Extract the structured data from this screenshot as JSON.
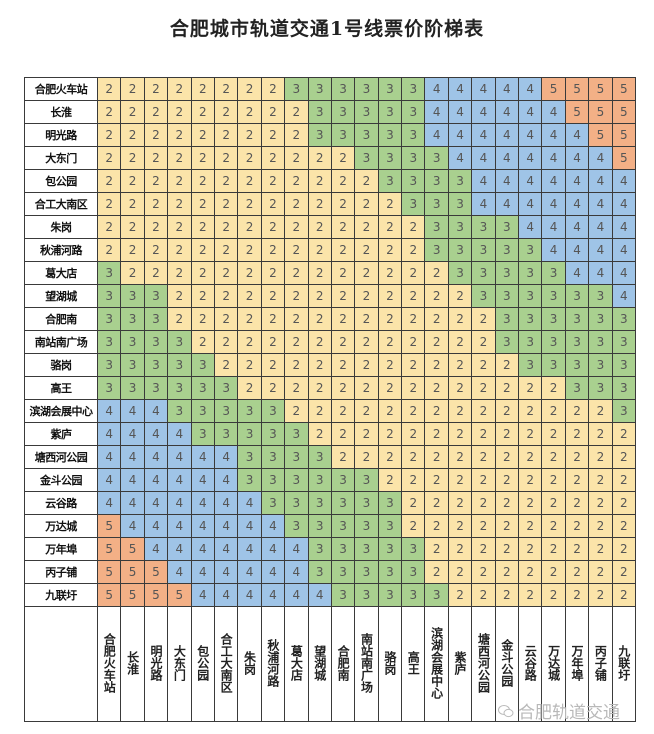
{
  "title": "合肥城市轨道交通1号线票价阶梯表",
  "watermark": "合肥轨道交通",
  "stations": [
    "合肥火车站",
    "长淮",
    "明光路",
    "大东门",
    "包公园",
    "合工大南区",
    "朱岗",
    "秋浦河路",
    "葛大店",
    "望湖城",
    "合肥南",
    "南站南广场",
    "骆岗",
    "高王",
    "滨湖会展中心",
    "紫庐",
    "塘西河公园",
    "金斗公园",
    "云谷路",
    "万达城",
    "万年埠",
    "丙子铺",
    "九联圩"
  ],
  "fare_colors": {
    "2": "#fbe4a9",
    "3": "#a9d08f",
    "4": "#9fc4e7",
    "5": "#f3b086"
  },
  "fare_upper_triangle": [
    [
      [
        0,
        7,
        2
      ],
      [
        8,
        13,
        3
      ],
      [
        14,
        18,
        4
      ],
      [
        19,
        22,
        5
      ]
    ],
    [
      [
        1,
        8,
        2
      ],
      [
        9,
        13,
        3
      ],
      [
        14,
        19,
        4
      ],
      [
        20,
        22,
        5
      ]
    ],
    [
      [
        2,
        8,
        2
      ],
      [
        9,
        13,
        3
      ],
      [
        14,
        20,
        4
      ],
      [
        21,
        22,
        5
      ]
    ],
    [
      [
        3,
        10,
        2
      ],
      [
        11,
        14,
        3
      ],
      [
        15,
        21,
        4
      ],
      [
        22,
        22,
        5
      ]
    ],
    [
      [
        4,
        11,
        2
      ],
      [
        12,
        15,
        3
      ],
      [
        16,
        22,
        4
      ]
    ],
    [
      [
        5,
        12,
        2
      ],
      [
        13,
        15,
        3
      ],
      [
        16,
        22,
        4
      ]
    ],
    [
      [
        6,
        13,
        2
      ],
      [
        14,
        17,
        3
      ],
      [
        18,
        22,
        4
      ]
    ],
    [
      [
        7,
        13,
        2
      ],
      [
        14,
        18,
        3
      ],
      [
        19,
        22,
        4
      ]
    ],
    [
      [
        8,
        14,
        2
      ],
      [
        15,
        19,
        3
      ],
      [
        20,
        22,
        4
      ]
    ],
    [
      [
        9,
        15,
        2
      ],
      [
        16,
        21,
        3
      ],
      [
        22,
        22,
        4
      ]
    ],
    [
      [
        10,
        16,
        2
      ],
      [
        17,
        22,
        3
      ]
    ],
    [
      [
        11,
        16,
        2
      ],
      [
        17,
        22,
        3
      ]
    ],
    [
      [
        12,
        17,
        2
      ],
      [
        18,
        22,
        3
      ]
    ],
    [
      [
        13,
        19,
        2
      ],
      [
        20,
        22,
        3
      ]
    ],
    [
      [
        14,
        21,
        2
      ],
      [
        22,
        22,
        3
      ]
    ],
    [
      [
        15,
        22,
        2
      ]
    ],
    [
      [
        16,
        22,
        2
      ]
    ],
    [
      [
        17,
        22,
        2
      ]
    ],
    [
      [
        18,
        22,
        2
      ]
    ],
    [
      [
        19,
        22,
        2
      ]
    ],
    [
      [
        20,
        22,
        2
      ]
    ],
    [
      [
        21,
        22,
        2
      ]
    ],
    [
      [
        22,
        22,
        2
      ]
    ]
  ]
}
